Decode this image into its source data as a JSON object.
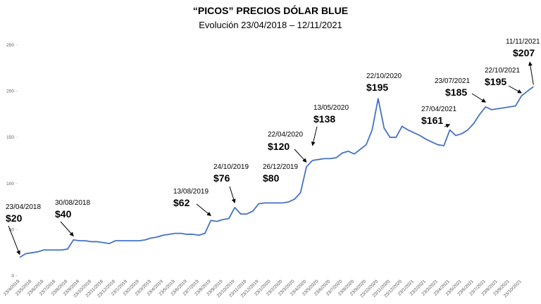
{
  "chart_data": {
    "type": "line",
    "title": "“PICOS” PRECIOS DÓLAR BLUE",
    "subtitle": "Evolución 23/04/2018 – 12/11/2021",
    "categories": [
      "23/4/2018",
      null,
      "23/5/2018",
      null,
      "23/6/2018",
      null,
      "23/7/2018",
      null,
      "23/8/2018",
      null,
      "23/9/2018",
      null,
      "23/10/2018",
      null,
      "23/11/2018",
      null,
      "23/12/2018",
      null,
      "23/1/2019",
      null,
      "23/2/2019",
      null,
      "23/3/2019",
      null,
      "23/4/2019",
      null,
      "23/5/2019",
      null,
      "23/6/2019",
      null,
      "23/7/2019",
      null,
      "23/8/2019",
      null,
      "23/9/2019",
      null,
      "23/10/2019",
      null,
      "23/11/2019",
      null,
      "23/12/2019",
      null,
      "23/1/2020",
      null,
      "23/2/2020",
      null,
      "23/3/2020",
      null,
      "23/4/2020",
      null,
      "23/5/2020",
      null,
      "23/6/2020",
      null,
      "23/7/2020",
      null,
      "23/8/2020",
      null,
      "23/9/2020",
      null,
      "23/10/2020",
      null,
      "23/11/2020",
      null,
      "23/12/2020",
      null,
      "23/1/2021",
      null,
      "23/2/2021",
      null,
      "23/3/2021",
      null,
      "23/4/2021",
      null,
      "23/5/2021",
      null,
      "23/6/2021",
      null,
      "23/7/2021",
      null,
      "23/8/2021",
      null,
      "23/9/2021",
      null,
      "23/10/2021",
      null,
      null
    ],
    "series": [
      {
        "name": "Dólar blue",
        "color": "#4472c4",
        "values": [
          20,
          24,
          25,
          26,
          28,
          28,
          28,
          28,
          29,
          39,
          38,
          38,
          37,
          37,
          36,
          35,
          38,
          38,
          38,
          38,
          38,
          39,
          41,
          42,
          44,
          45,
          46,
          46,
          45,
          45,
          44,
          46,
          60,
          59,
          61,
          62,
          74,
          67,
          67,
          70,
          78,
          79,
          79,
          79,
          79,
          80,
          83,
          90,
          118,
          125,
          126,
          127,
          127,
          128,
          133,
          135,
          132,
          137,
          142,
          158,
          192,
          160,
          150,
          150,
          162,
          158,
          155,
          152,
          148,
          145,
          142,
          141,
          158,
          152,
          154,
          158,
          165,
          175,
          183,
          180,
          181,
          182,
          183,
          184,
          195,
          200,
          205
        ]
      }
    ],
    "ylim": [
      0,
      250
    ],
    "yticks": [
      0,
      50,
      100,
      150,
      200,
      250
    ],
    "annotations": [
      {
        "date": "23/04/2018",
        "value": 20,
        "label": "$20"
      },
      {
        "date": "30/08/2018",
        "value": 40,
        "label": "$40"
      },
      {
        "date": "13/08/2019",
        "value": 62,
        "label": "$62"
      },
      {
        "date": "24/10/2019",
        "value": 76,
        "label": "$76"
      },
      {
        "date": "26/12/2019",
        "value": 80,
        "label": "$80"
      },
      {
        "date": "22/04/2020",
        "value": 120,
        "label": "$120"
      },
      {
        "date": "13/05/2020",
        "value": 138,
        "label": "$138"
      },
      {
        "date": "22/10/2020",
        "value": 195,
        "label": "$195"
      },
      {
        "date": "27/04/2021",
        "value": 161,
        "label": "$161"
      },
      {
        "date": "23/07/2021",
        "value": 185,
        "label": "$185"
      },
      {
        "date": "22/10/2021",
        "value": 195,
        "label": "$195"
      },
      {
        "date": "11/11/2021",
        "value": 207,
        "label": "$207"
      }
    ]
  }
}
